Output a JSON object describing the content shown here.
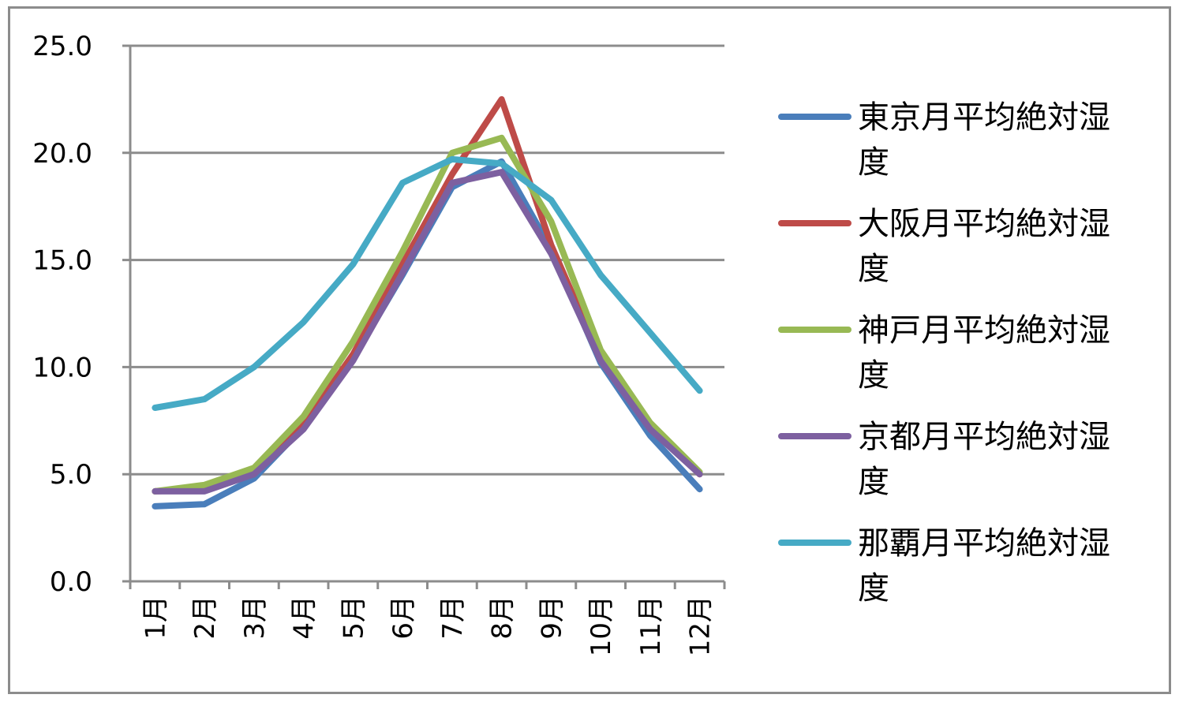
{
  "chart_data": {
    "type": "line",
    "title": "",
    "xlabel": "",
    "ylabel": "",
    "ylim": [
      0,
      25
    ],
    "y_ticks": [
      "0.0",
      "5.0",
      "10.0",
      "15.0",
      "20.0",
      "25.0"
    ],
    "grid": "horizontal",
    "legend_position": "right",
    "categories": [
      "1月",
      "2月",
      "3月",
      "4月",
      "5月",
      "6月",
      "7月",
      "8月",
      "9月",
      "10月",
      "11月",
      "12月"
    ],
    "series": [
      {
        "name": "東京月平均絶対湿度",
        "color": "#4a7ebb",
        "values": [
          3.5,
          3.6,
          4.8,
          7.2,
          10.4,
          14.3,
          18.4,
          19.6,
          15.5,
          10.2,
          6.8,
          4.3
        ]
      },
      {
        "name": "大阪月平均絶対湿度",
        "color": "#be4b48",
        "values": [
          4.2,
          4.3,
          5.0,
          7.3,
          10.6,
          14.8,
          19.0,
          22.5,
          15.7,
          10.4,
          7.2,
          5.0
        ]
      },
      {
        "name": "神戸月平均絶対湿度",
        "color": "#98b954",
        "values": [
          4.2,
          4.5,
          5.3,
          7.7,
          11.2,
          15.4,
          20.0,
          20.7,
          16.8,
          10.8,
          7.4,
          5.1
        ]
      },
      {
        "name": "京都月平均絶対湿度",
        "color": "#7d60a0",
        "values": [
          4.2,
          4.2,
          5.0,
          7.1,
          10.3,
          14.4,
          18.6,
          19.1,
          15.3,
          10.3,
          7.1,
          5.0
        ]
      },
      {
        "name": "那覇月平均絶対湿度",
        "color": "#46aac5",
        "values": [
          8.1,
          8.5,
          10.0,
          12.1,
          14.8,
          18.6,
          19.7,
          19.5,
          17.8,
          14.3,
          11.6,
          8.9
        ]
      }
    ]
  }
}
